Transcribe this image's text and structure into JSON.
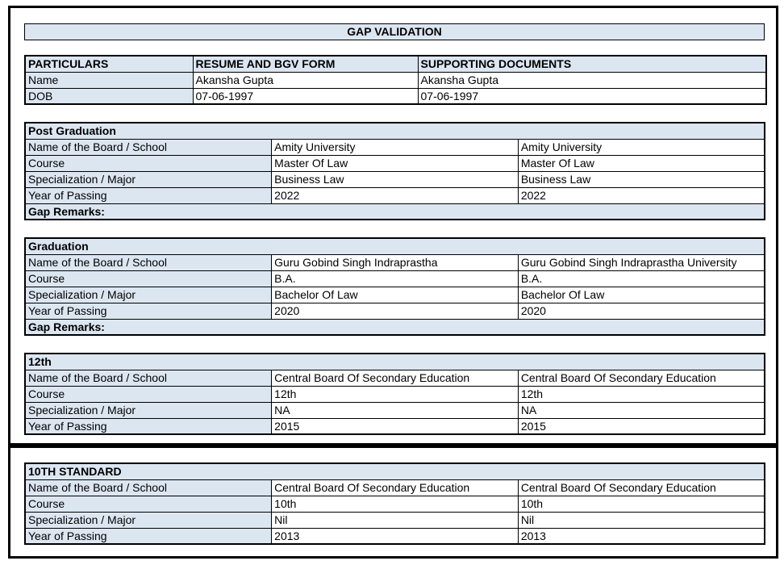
{
  "title": "GAP VALIDATION",
  "colors": {
    "header_fill": "#dce6f1",
    "border": "#000000",
    "page_bg": "#ffffff"
  },
  "columns": [
    "PARTICULARS",
    "RESUME AND BGV FORM",
    "SUPPORTING DOCUMENTS"
  ],
  "personal": {
    "rows": [
      {
        "label": "Name",
        "resume": "Akansha Gupta",
        "supporting": "Akansha Gupta"
      },
      {
        "label": "DOB",
        "resume": "07-06-1997",
        "supporting": "07-06-1997"
      }
    ]
  },
  "sections": [
    {
      "heading": "Post Graduation",
      "rows": [
        {
          "label": "Name of the Board / School",
          "resume": "Amity University",
          "supporting": "Amity University"
        },
        {
          "label": "Course",
          "resume": "Master Of Law",
          "supporting": "Master Of Law"
        },
        {
          "label": "Specialization / Major",
          "resume": "Business Law",
          "supporting": "Business Law"
        },
        {
          "label": "Year of Passing",
          "resume": "2022",
          "supporting": "2022"
        }
      ],
      "gap_remarks_label": "Gap Remarks:"
    },
    {
      "heading": "Graduation",
      "rows": [
        {
          "label": "Name of the Board / School",
          "resume": "Guru Gobind Singh Indraprastha",
          "supporting": "Guru Gobind Singh Indraprastha University"
        },
        {
          "label": "Course",
          "resume": "B.A.",
          "supporting": "B.A."
        },
        {
          "label": "Specialization / Major",
          "resume": "Bachelor Of Law",
          "supporting": "Bachelor Of Law"
        },
        {
          "label": "Year of Passing",
          "resume": "2020",
          "supporting": "2020"
        }
      ],
      "gap_remarks_label": "Gap Remarks:"
    },
    {
      "heading": "12th",
      "rows": [
        {
          "label": "Name of the Board / School",
          "resume": "Central Board Of Secondary Education",
          "supporting": "Central Board Of Secondary Education"
        },
        {
          "label": "Course",
          "resume": "12th",
          "supporting": "12th"
        },
        {
          "label": "Specialization / Major",
          "resume": "NA",
          "supporting": "NA"
        },
        {
          "label": "Year of Passing",
          "resume": "2015",
          "supporting": "2015"
        }
      ]
    },
    {
      "heading": "10TH STANDARD",
      "rows": [
        {
          "label": "Name of the Board / School",
          "resume": "Central Board Of Secondary Education",
          "supporting": "Central Board Of Secondary Education"
        },
        {
          "label": "Course",
          "resume": "10th",
          "supporting": "10th"
        },
        {
          "label": "Specialization / Major",
          "resume": "Nil",
          "supporting": "Nil"
        },
        {
          "label": "Year of Passing",
          "resume": "2013",
          "supporting": "2013"
        }
      ]
    }
  ]
}
